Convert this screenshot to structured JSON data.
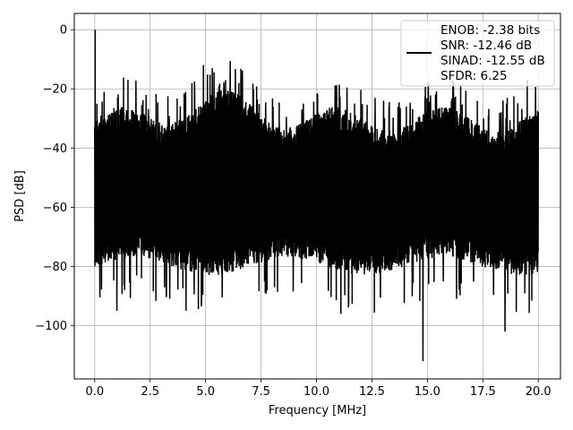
{
  "chart_data": {
    "type": "line",
    "title": "",
    "xlabel": "Frequency [MHz]",
    "ylabel": "PSD [dB]",
    "xlim": [
      -0.92,
      21.0
    ],
    "ylim": [
      -118,
      5.5
    ],
    "x_ticks": [
      0.0,
      2.5,
      5.0,
      7.5,
      10.0,
      12.5,
      15.0,
      17.5,
      20.0
    ],
    "x_tick_labels": [
      "0.0",
      "2.5",
      "5.0",
      "7.5",
      "10.0",
      "12.5",
      "15.0",
      "17.5",
      "20.0"
    ],
    "y_ticks": [
      0,
      -20,
      -40,
      -60,
      -80,
      -100
    ],
    "y_tick_labels": [
      "0",
      "−20",
      "−40",
      "−60",
      "−80",
      "−100"
    ],
    "grid": true,
    "line_color": "#000000",
    "legend_position": "top-right",
    "legend": [
      "ENOB: -2.38 bits",
      "SNR: -12.46 dB",
      "SINAD: -12.55 dB",
      "SFDR: 6.25"
    ],
    "series": [
      {
        "x_range": [
          0.0,
          20.0
        ],
        "peaks": [
          {
            "x": 0.02,
            "y": 0
          },
          {
            "x": 0.1,
            "y": -25
          },
          {
            "x": 4.9,
            "y": -12
          },
          {
            "x": 5.3,
            "y": -13
          },
          {
            "x": 4.1,
            "y": -21
          },
          {
            "x": 5.6,
            "y": -19
          },
          {
            "x": 5.9,
            "y": -17
          },
          {
            "x": 6.5,
            "y": -18
          },
          {
            "x": 18.6,
            "y": -23
          },
          {
            "x": 19.5,
            "y": -17
          }
        ],
        "dips": [
          {
            "x": 14.8,
            "y": -112
          },
          {
            "x": 18.5,
            "y": -102
          },
          {
            "x": 1.0,
            "y": -95
          },
          {
            "x": 11.1,
            "y": -96
          }
        ]
      }
    ]
  }
}
